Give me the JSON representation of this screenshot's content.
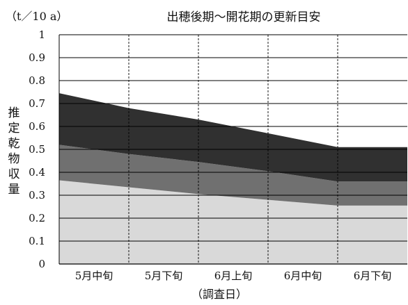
{
  "chart_data": {
    "type": "area",
    "stacked": true,
    "title": "出穂後期〜開花期の更新目安",
    "unit": "（t／10 a）",
    "ylabel": "推定乾物収量",
    "xlabel": "（調査日）",
    "categories": [
      "5月中旬",
      "5月下旬",
      "6月上旬",
      "6月中旬",
      "6月下旬"
    ],
    "ylim": [
      0,
      1
    ],
    "yticks": [
      "0",
      "0.1",
      "0.2",
      "0.3",
      "0.4",
      "0.5",
      "0.6",
      "0.7",
      "0.8",
      "0.9",
      "1"
    ],
    "series": [
      {
        "x": [
          0,
          1,
          2,
          3,
          4,
          5
        ],
        "values": [
          0.365,
          0.335,
          0.305,
          0.28,
          0.255,
          0.255
        ],
        "color": "#d9d9d9"
      },
      {
        "x": [
          0,
          1,
          2,
          3,
          4,
          5
        ],
        "values": [
          0.155,
          0.145,
          0.14,
          0.125,
          0.105,
          0.105
        ],
        "color": "#707070"
      },
      {
        "x": [
          0,
          1,
          2,
          3,
          4,
          5
        ],
        "values": [
          0.225,
          0.2,
          0.185,
          0.165,
          0.15,
          0.15
        ],
        "color": "#303030"
      }
    ],
    "grid": true,
    "legend": "none"
  }
}
